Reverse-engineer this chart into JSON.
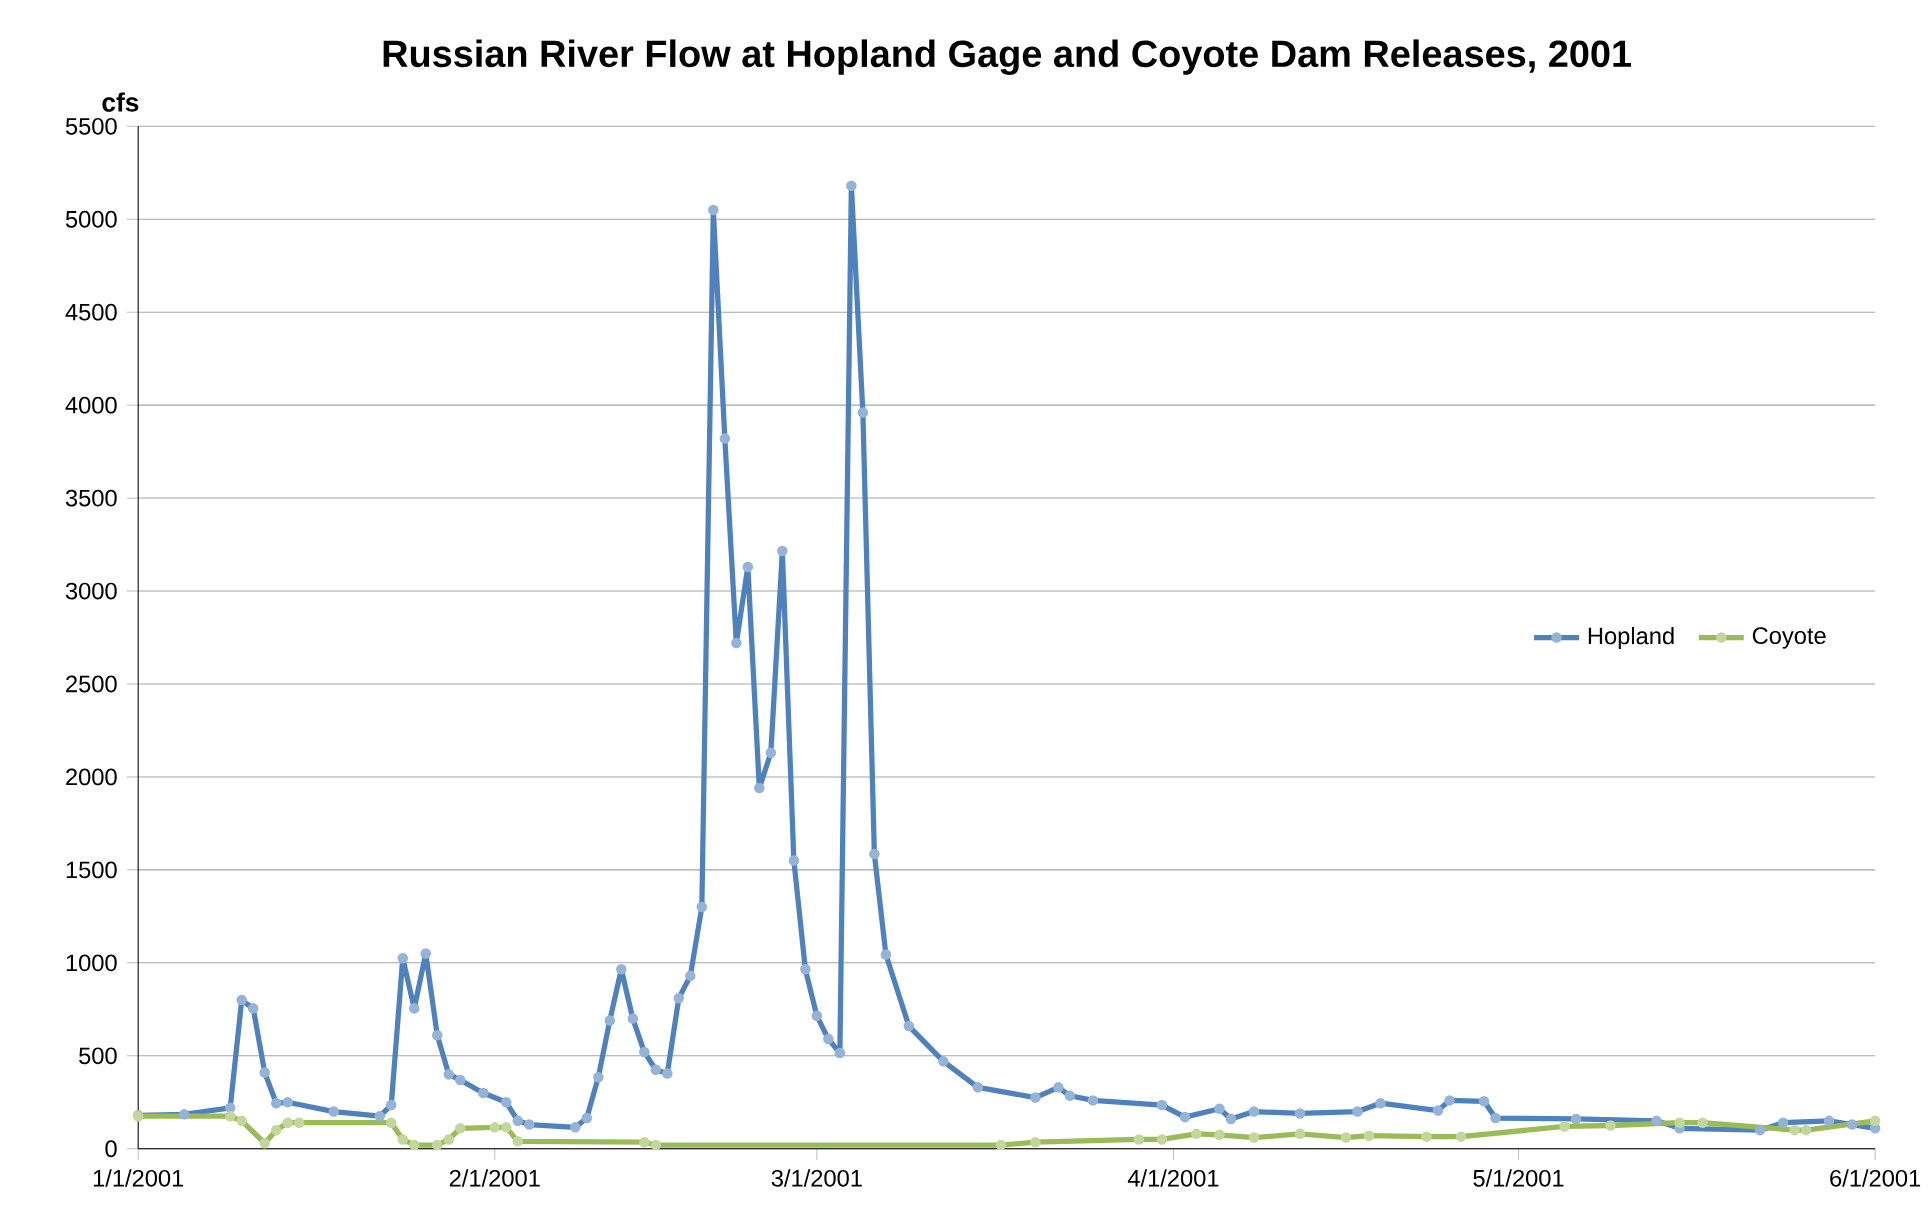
{
  "chart_data": {
    "type": "line",
    "title": "Russian River Flow at Hopland Gage and Coyote Dam Releases, 2001",
    "ylabel": "cfs",
    "xlim": [
      "2001-01-01",
      "2001-06-01"
    ],
    "ylim": [
      0,
      5500
    ],
    "xticks": [
      {
        "value": "2001-01-01",
        "label": "1/1/2001"
      },
      {
        "value": "2001-02-01",
        "label": "2/1/2001"
      },
      {
        "value": "2001-03-01",
        "label": "3/1/2001"
      },
      {
        "value": "2001-04-01",
        "label": "4/1/2001"
      },
      {
        "value": "2001-05-01",
        "label": "5/1/2001"
      },
      {
        "value": "2001-06-01",
        "label": "6/1/2001"
      }
    ],
    "yticks": [
      0,
      500,
      1000,
      1500,
      2000,
      2500,
      3000,
      3500,
      4000,
      4500,
      5000,
      5500
    ],
    "grid": "y",
    "legend": "right",
    "marker": "circle",
    "series": [
      {
        "name": "Hopland",
        "color": "#4f81bd",
        "x": [
          "2001-01-01",
          "2001-01-05",
          "2001-01-09",
          "2001-01-10",
          "2001-01-11",
          "2001-01-12",
          "2001-01-13",
          "2001-01-14",
          "2001-01-18",
          "2001-01-22",
          "2001-01-23",
          "2001-01-24",
          "2001-01-25",
          "2001-01-26",
          "2001-01-27",
          "2001-01-28",
          "2001-01-29",
          "2001-01-31",
          "2001-02-02",
          "2001-02-03",
          "2001-02-04",
          "2001-02-08",
          "2001-02-09",
          "2001-02-10",
          "2001-02-11",
          "2001-02-12",
          "2001-02-13",
          "2001-02-14",
          "2001-02-15",
          "2001-02-16",
          "2001-02-17",
          "2001-02-18",
          "2001-02-19",
          "2001-02-20",
          "2001-02-21",
          "2001-02-22",
          "2001-02-23",
          "2001-02-24",
          "2001-02-25",
          "2001-02-26",
          "2001-02-27",
          "2001-02-28",
          "2001-03-01",
          "2001-03-02",
          "2001-03-03",
          "2001-03-04",
          "2001-03-05",
          "2001-03-06",
          "2001-03-07",
          "2001-03-09",
          "2001-03-12",
          "2001-03-15",
          "2001-03-20",
          "2001-03-22",
          "2001-03-23",
          "2001-03-25",
          "2001-03-31",
          "2001-04-02",
          "2001-04-05",
          "2001-04-06",
          "2001-04-08",
          "2001-04-12",
          "2001-04-17",
          "2001-04-19",
          "2001-04-24",
          "2001-04-25",
          "2001-04-28",
          "2001-04-29",
          "2001-05-06",
          "2001-05-13",
          "2001-05-15",
          "2001-05-22",
          "2001-05-24",
          "2001-05-28",
          "2001-05-30",
          "2001-06-01"
        ],
        "values": [
          180,
          185,
          220,
          800,
          755,
          410,
          245,
          250,
          200,
          175,
          235,
          1025,
          755,
          1050,
          610,
          400,
          370,
          300,
          250,
          150,
          130,
          115,
          165,
          385,
          690,
          965,
          700,
          520,
          425,
          405,
          810,
          930,
          1300,
          5050,
          3820,
          2720,
          3130,
          1940,
          2130,
          3215,
          1550,
          965,
          715,
          590,
          515,
          5180,
          3960,
          1585,
          1045,
          660,
          470,
          330,
          275,
          330,
          285,
          260,
          235,
          170,
          215,
          160,
          200,
          190,
          200,
          245,
          205,
          260,
          255,
          165,
          160,
          150,
          110,
          100,
          140,
          150,
          130,
          110
        ]
      },
      {
        "name": "Coyote",
        "color": "#9bbb59",
        "x": [
          "2001-01-01",
          "2001-01-09",
          "2001-01-10",
          "2001-01-12",
          "2001-01-13",
          "2001-01-14",
          "2001-01-15",
          "2001-01-23",
          "2001-01-24",
          "2001-01-25",
          "2001-01-27",
          "2001-01-28",
          "2001-01-29",
          "2001-02-01",
          "2001-02-02",
          "2001-02-03",
          "2001-02-14",
          "2001-02-15",
          "2001-03-17",
          "2001-03-20",
          "2001-03-29",
          "2001-03-31",
          "2001-04-03",
          "2001-04-05",
          "2001-04-08",
          "2001-04-12",
          "2001-04-16",
          "2001-04-18",
          "2001-04-23",
          "2001-04-26",
          "2001-05-05",
          "2001-05-09",
          "2001-05-15",
          "2001-05-17",
          "2001-05-25",
          "2001-05-26",
          "2001-06-01"
        ],
        "values": [
          175,
          175,
          150,
          30,
          100,
          140,
          140,
          140,
          50,
          20,
          20,
          50,
          110,
          115,
          115,
          40,
          35,
          20,
          20,
          35,
          50,
          50,
          80,
          75,
          60,
          80,
          60,
          70,
          65,
          65,
          120,
          125,
          140,
          140,
          100,
          100,
          150
        ]
      }
    ]
  }
}
